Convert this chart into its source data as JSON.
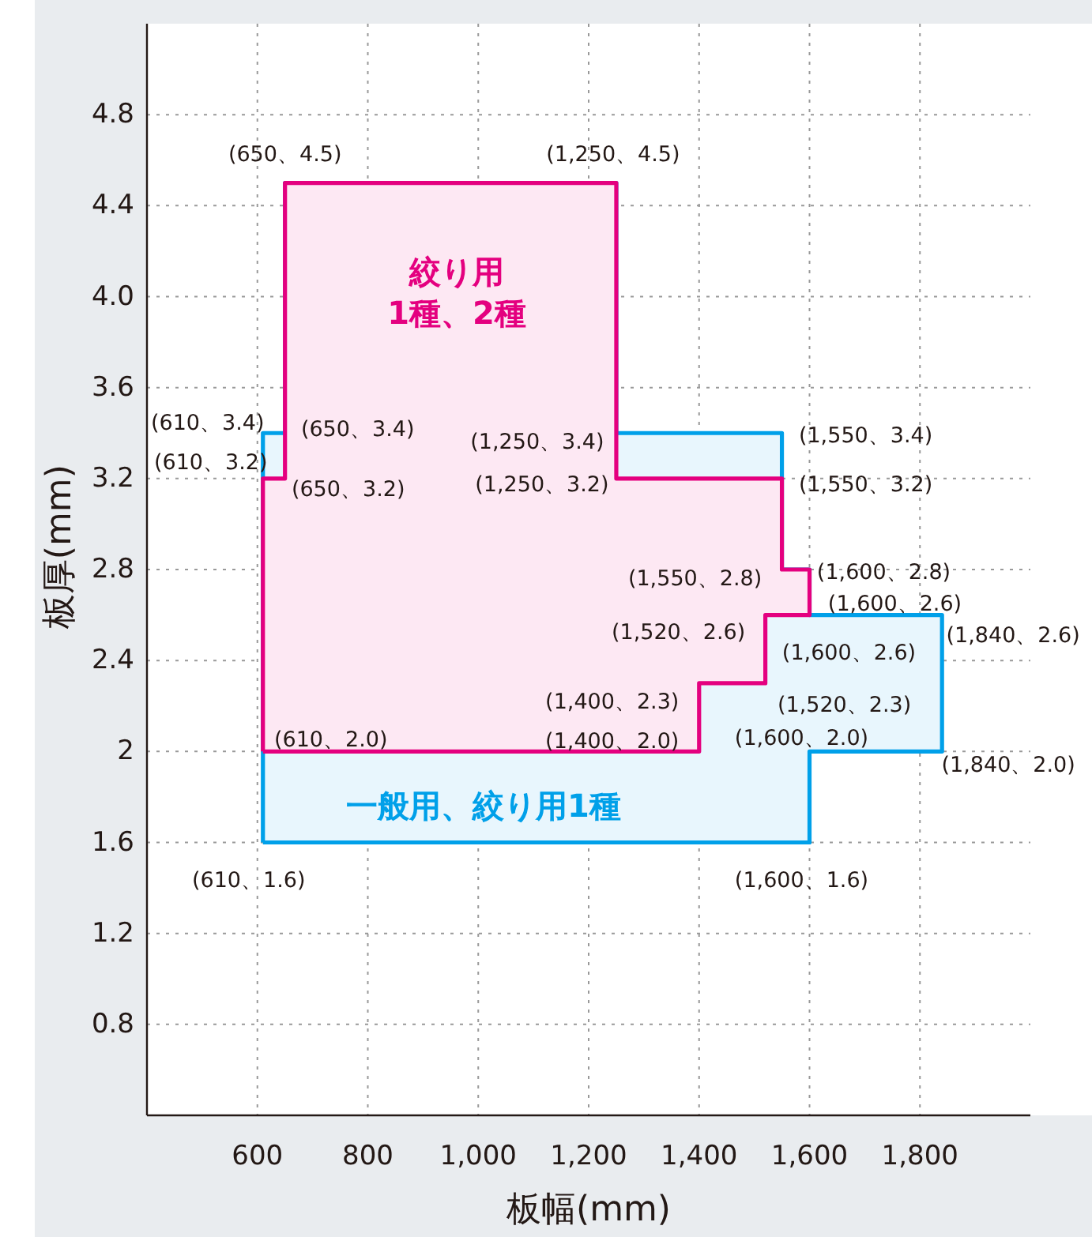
{
  "chart_data": {
    "type": "area",
    "xlabel": "板幅(mm)",
    "ylabel": "板厚(mm)",
    "xlim": [
      400,
      2000
    ],
    "ylim": [
      0.4,
      5.2
    ],
    "xticks": [
      600,
      800,
      {
        "value": 1000,
        "label": "1,000"
      },
      {
        "value": 1200,
        "label": "1,200"
      },
      {
        "value": 1400,
        "label": "1,400"
      },
      {
        "value": 1600,
        "label": "1,600"
      },
      {
        "value": 1800,
        "label": "1,800"
      }
    ],
    "yticks": [
      0.8,
      1.2,
      1.6,
      2,
      2.4,
      2.8,
      3.2,
      3.6,
      {
        "value": 4,
        "label": "4.0"
      },
      4.4,
      4.8
    ],
    "grid": true,
    "line_style": "solid",
    "marker": "none",
    "series": [
      {
        "name": "一般用、絞り用1種",
        "color": "#00a0e9",
        "x": [
          610,
          610,
          650,
          650,
          1250,
          1250,
          1550,
          1550,
          1600,
          1600,
          1840,
          1840,
          1600,
          1600,
          610
        ],
        "values": [
          1.6,
          3.4,
          3.4,
          4.5,
          4.5,
          3.4,
          3.4,
          2.8,
          2.8,
          2.6,
          2.6,
          2.0,
          2.0,
          1.6,
          1.6
        ]
      },
      {
        "name": "絞り用 1種、2種",
        "color": "#e4007f",
        "x": [
          610,
          610,
          650,
          650,
          1250,
          1250,
          1550,
          1550,
          1600,
          1600,
          1520,
          1520,
          1400,
          1400,
          610
        ],
        "values": [
          2.0,
          3.2,
          3.2,
          4.5,
          4.5,
          3.2,
          3.2,
          2.8,
          2.8,
          2.6,
          2.6,
          2.3,
          2.3,
          2.0,
          2.0
        ]
      }
    ],
    "annotations": [
      {
        "text": "(650、4.5)",
        "x": 650,
        "y": 4.5
      },
      {
        "text": "(1,250、4.5)",
        "x": 1250,
        "y": 4.5
      },
      {
        "text": "(610、3.4)",
        "x": 610,
        "y": 3.4
      },
      {
        "text": "(650、3.4)",
        "x": 650,
        "y": 3.4
      },
      {
        "text": "(610、3.2)",
        "x": 610,
        "y": 3.2
      },
      {
        "text": "(650、3.2)",
        "x": 650,
        "y": 3.2
      },
      {
        "text": "(1,250、3.4)",
        "x": 1250,
        "y": 3.4
      },
      {
        "text": "(1,250、3.2)",
        "x": 1250,
        "y": 3.2
      },
      {
        "text": "(1,550、3.4)",
        "x": 1550,
        "y": 3.4
      },
      {
        "text": "(1,550、3.2)",
        "x": 1550,
        "y": 3.2
      },
      {
        "text": "(1,550、2.8)",
        "x": 1550,
        "y": 2.8
      },
      {
        "text": "(1,600、2.8)",
        "x": 1600,
        "y": 2.8
      },
      {
        "text": "(1,600、2.6)",
        "x": 1600,
        "y": 2.6
      },
      {
        "text": "(1,520、2.6)",
        "x": 1520,
        "y": 2.6
      },
      {
        "text": "(1,600、2.6)",
        "x": 1600,
        "y": 2.6
      },
      {
        "text": "(1,840、2.6)",
        "x": 1840,
        "y": 2.6
      },
      {
        "text": "(1,400、2.3)",
        "x": 1400,
        "y": 2.3
      },
      {
        "text": "(1,520、2.3)",
        "x": 1520,
        "y": 2.3
      },
      {
        "text": "(1,400、2.0)",
        "x": 1400,
        "y": 2.0
      },
      {
        "text": "(1,600、2.0)",
        "x": 1600,
        "y": 2.0
      },
      {
        "text": "(1,840、2.0)",
        "x": 1840,
        "y": 2.0
      },
      {
        "text": "(610、2.0)",
        "x": 610,
        "y": 2.0
      },
      {
        "text": "(610、1.6)",
        "x": 610,
        "y": 1.6
      },
      {
        "text": "(1,600、1.6)",
        "x": 1600,
        "y": 1.6
      }
    ]
  }
}
